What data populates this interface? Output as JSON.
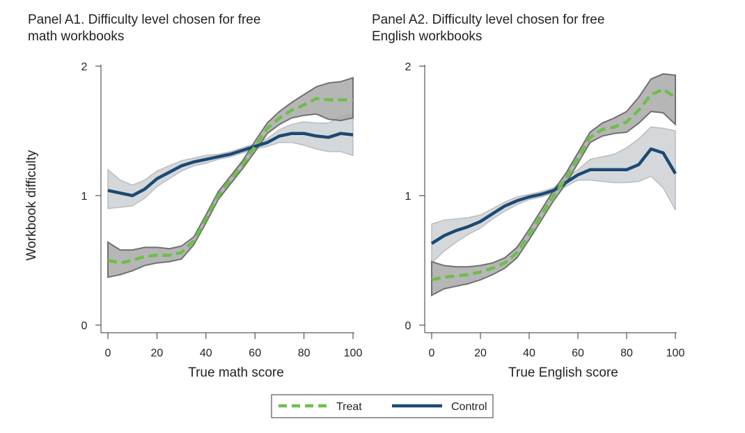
{
  "y_axis_label": "Workbook difficulty",
  "legend": {
    "treat_label": "Treat",
    "control_label": "Control"
  },
  "colors": {
    "treat": "#6cbf4a",
    "control": "#1b4a72",
    "treat_band": "#a9a9a9",
    "treat_band_edge": "#707070",
    "control_band": "#d5d8db",
    "control_band_edge": "#b8bcc0",
    "axis": "#333333"
  },
  "chart_data": [
    {
      "type": "line",
      "title": "Panel A1. Difficulty level chosen for free math workbooks",
      "title_lines": [
        "Panel A1. Difficulty level chosen for free",
        "math workbooks"
      ],
      "xlabel": "True math score",
      "ylabel": "Workbook difficulty",
      "xlim": [
        0,
        100
      ],
      "ylim": [
        0,
        2
      ],
      "xticks": [
        0,
        20,
        40,
        60,
        80,
        100
      ],
      "yticks": [
        0,
        1,
        2
      ],
      "grid": false,
      "series": [
        {
          "name": "Treat",
          "style": "dashed",
          "x": [
            0,
            5,
            10,
            15,
            20,
            25,
            30,
            35,
            40,
            45,
            50,
            55,
            60,
            65,
            70,
            75,
            80,
            85,
            90,
            95,
            100
          ],
          "y": [
            0.5,
            0.48,
            0.5,
            0.53,
            0.54,
            0.54,
            0.56,
            0.65,
            0.82,
            1.0,
            1.12,
            1.24,
            1.38,
            1.52,
            1.6,
            1.66,
            1.7,
            1.75,
            1.74,
            1.74,
            1.74
          ],
          "lower": [
            0.37,
            0.39,
            0.42,
            0.46,
            0.48,
            0.49,
            0.51,
            0.62,
            0.79,
            0.97,
            1.09,
            1.21,
            1.34,
            1.48,
            1.55,
            1.6,
            1.62,
            1.63,
            1.59,
            1.58,
            1.6
          ],
          "upper": [
            0.64,
            0.58,
            0.58,
            0.6,
            0.6,
            0.59,
            0.61,
            0.68,
            0.85,
            1.03,
            1.15,
            1.27,
            1.42,
            1.56,
            1.65,
            1.72,
            1.78,
            1.84,
            1.87,
            1.88,
            1.91
          ]
        },
        {
          "name": "Control",
          "style": "solid",
          "x": [
            0,
            5,
            10,
            15,
            20,
            25,
            30,
            35,
            40,
            45,
            50,
            55,
            60,
            65,
            70,
            75,
            80,
            85,
            90,
            95,
            100
          ],
          "y": [
            1.04,
            1.02,
            1.0,
            1.05,
            1.13,
            1.18,
            1.23,
            1.26,
            1.28,
            1.3,
            1.32,
            1.35,
            1.38,
            1.41,
            1.46,
            1.48,
            1.48,
            1.46,
            1.45,
            1.48,
            1.47
          ],
          "lower": [
            0.9,
            0.91,
            0.92,
            0.98,
            1.07,
            1.13,
            1.19,
            1.23,
            1.25,
            1.28,
            1.3,
            1.33,
            1.36,
            1.38,
            1.41,
            1.41,
            1.39,
            1.36,
            1.34,
            1.34,
            1.31
          ],
          "upper": [
            1.2,
            1.12,
            1.08,
            1.12,
            1.19,
            1.23,
            1.27,
            1.29,
            1.31,
            1.32,
            1.34,
            1.37,
            1.4,
            1.44,
            1.51,
            1.55,
            1.57,
            1.56,
            1.56,
            1.61,
            1.63
          ]
        }
      ]
    },
    {
      "type": "line",
      "title": "Panel A2. Difficulty level chosen for free English workbooks",
      "title_lines": [
        "Panel A2. Difficulty level chosen for free",
        "English workbooks"
      ],
      "xlabel": "True English score",
      "ylabel": "",
      "xlim": [
        0,
        100
      ],
      "ylim": [
        0,
        2
      ],
      "xticks": [
        0,
        20,
        40,
        60,
        80,
        100
      ],
      "yticks": [
        0,
        1,
        2
      ],
      "grid": false,
      "series": [
        {
          "name": "Treat",
          "style": "dashed",
          "x": [
            0,
            5,
            10,
            15,
            20,
            25,
            30,
            35,
            40,
            45,
            50,
            55,
            60,
            65,
            70,
            75,
            80,
            85,
            90,
            95,
            100
          ],
          "y": [
            0.35,
            0.37,
            0.38,
            0.39,
            0.41,
            0.44,
            0.48,
            0.56,
            0.7,
            0.85,
            1.0,
            1.13,
            1.29,
            1.45,
            1.51,
            1.53,
            1.57,
            1.66,
            1.78,
            1.82,
            1.76
          ],
          "lower": [
            0.23,
            0.28,
            0.3,
            0.32,
            0.35,
            0.39,
            0.44,
            0.52,
            0.66,
            0.81,
            0.96,
            1.09,
            1.25,
            1.41,
            1.46,
            1.48,
            1.49,
            1.56,
            1.65,
            1.64,
            1.55
          ],
          "upper": [
            0.49,
            0.46,
            0.45,
            0.45,
            0.46,
            0.48,
            0.52,
            0.6,
            0.74,
            0.89,
            1.04,
            1.17,
            1.33,
            1.49,
            1.56,
            1.6,
            1.65,
            1.76,
            1.9,
            1.94,
            1.93
          ]
        },
        {
          "name": "Control",
          "style": "solid",
          "x": [
            0,
            5,
            10,
            15,
            20,
            25,
            30,
            35,
            40,
            45,
            50,
            55,
            60,
            65,
            70,
            75,
            80,
            85,
            90,
            95,
            100
          ],
          "y": [
            0.63,
            0.69,
            0.73,
            0.76,
            0.8,
            0.86,
            0.92,
            0.96,
            0.99,
            1.01,
            1.04,
            1.1,
            1.16,
            1.2,
            1.2,
            1.2,
            1.2,
            1.24,
            1.36,
            1.33,
            1.17
          ],
          "lower": [
            0.48,
            0.57,
            0.64,
            0.7,
            0.75,
            0.82,
            0.88,
            0.93,
            0.97,
            0.99,
            1.02,
            1.07,
            1.12,
            1.12,
            1.11,
            1.1,
            1.1,
            1.11,
            1.15,
            1.06,
            0.89
          ],
          "upper": [
            0.78,
            0.81,
            0.82,
            0.83,
            0.85,
            0.9,
            0.95,
            0.99,
            1.01,
            1.03,
            1.06,
            1.13,
            1.2,
            1.28,
            1.3,
            1.32,
            1.37,
            1.44,
            1.53,
            1.52,
            1.5
          ]
        }
      ]
    }
  ]
}
